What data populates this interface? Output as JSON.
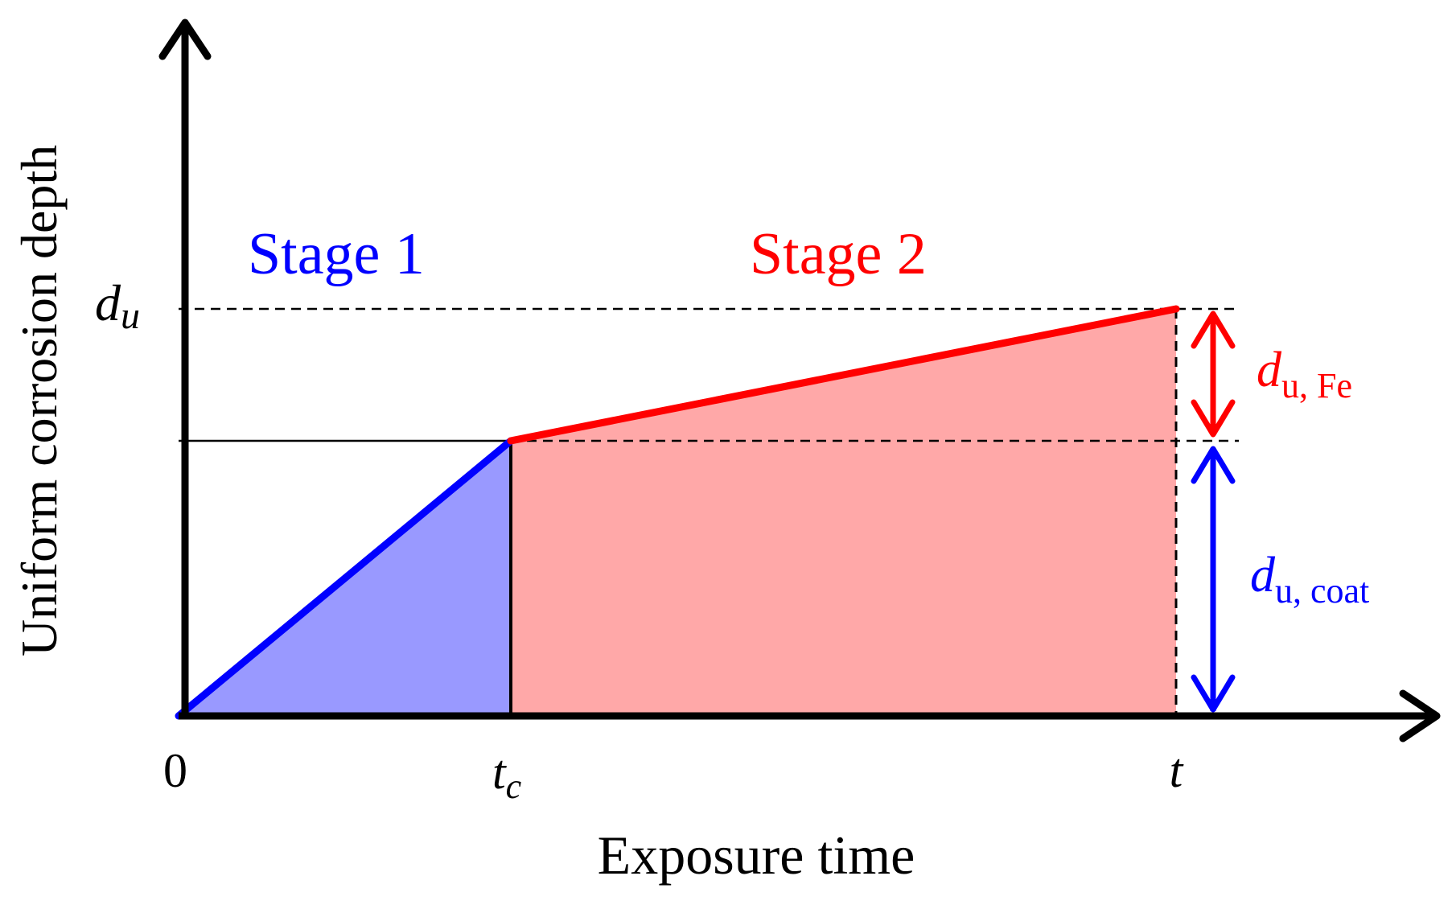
{
  "title": "",
  "axes": {
    "y_label": "Uniform corrosion depth",
    "x_label": "Exposure time"
  },
  "ticks": {
    "origin": "0",
    "tc_main": "t",
    "tc_sub": "c",
    "t": "t",
    "du_main": "d",
    "du_sub": "u"
  },
  "stages": {
    "stage1": "Stage 1",
    "stage2": "Stage 2"
  },
  "annotations": {
    "fe_main": "d",
    "fe_sub": "u, Fe",
    "coat_main": "d",
    "coat_sub": "u, coat"
  },
  "colors": {
    "axis": "#000000",
    "stage1": "#0000ff",
    "stage1_fill": "#9999ff",
    "stage2": "#ff0000",
    "stage2_fill": "#ffa8a8"
  }
}
